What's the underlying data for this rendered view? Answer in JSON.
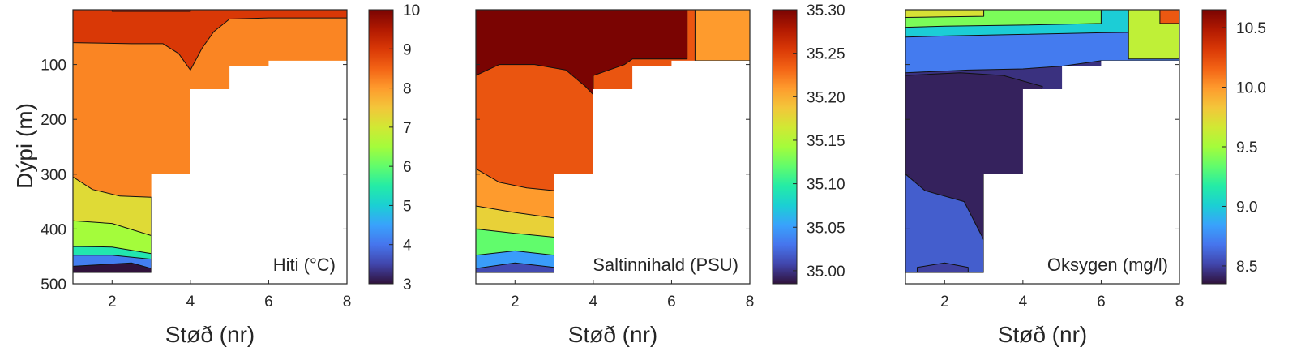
{
  "colors": {
    "turbo": [
      "#30123b",
      "#4145ab",
      "#4675ed",
      "#39a2fc",
      "#1bcfd4",
      "#24eca6",
      "#61fc6c",
      "#a4fc3b",
      "#d1e834",
      "#f3c63a",
      "#fe9b2d",
      "#f36315",
      "#d93806",
      "#b11901",
      "#7a0402"
    ],
    "frame": "#262626"
  },
  "chart_data": [
    {
      "type": "heatmap",
      "name": "temperature",
      "xlabel": "Støð (nr)",
      "ylabel": "Dýpi (m)",
      "label": "Hiti (°C)",
      "xlim": [
        1,
        8
      ],
      "ylim": [
        500,
        0
      ],
      "xticks": [
        2,
        4,
        6,
        8
      ],
      "yticks": [
        100,
        200,
        300,
        400,
        500
      ],
      "colorbar": {
        "min": 3,
        "max": 10,
        "ticks": [
          "3",
          "4",
          "5",
          "6",
          "7",
          "8",
          "9",
          "10"
        ]
      },
      "bottom_depth": [
        [
          1,
          480
        ],
        [
          3,
          480
        ],
        [
          3,
          300
        ],
        [
          4,
          300
        ],
        [
          4,
          145
        ],
        [
          5,
          145
        ],
        [
          5,
          103
        ],
        [
          6,
          103
        ],
        [
          6,
          93
        ],
        [
          8,
          93
        ]
      ],
      "zones": [
        {
          "value": 2.9,
          "outline": [
            [
              1,
              468
            ],
            [
              2.5,
              462
            ],
            [
              3,
              472
            ],
            [
              3,
              480
            ],
            [
              1,
              480
            ]
          ]
        },
        {
          "value": 4.1,
          "outline": [
            [
              1,
              448
            ],
            [
              2,
              448
            ],
            [
              3,
              455
            ],
            [
              3,
              480
            ],
            [
              1,
              480
            ]
          ]
        },
        {
          "value": 5.4,
          "outline": [
            [
              1,
              432
            ],
            [
              2,
              433
            ],
            [
              3,
              445
            ],
            [
              3,
              480
            ],
            [
              1,
              480
            ]
          ]
        },
        {
          "value": 6.5,
          "outline": [
            [
              1,
              385
            ],
            [
              2,
              390
            ],
            [
              3,
              412
            ],
            [
              3,
              480
            ],
            [
              1,
              480
            ]
          ]
        },
        {
          "value": 7.2,
          "outline": [
            [
              1,
              305
            ],
            [
              1.5,
              328
            ],
            [
              2.2,
              340
            ],
            [
              3,
              342
            ],
            [
              3,
              480
            ],
            [
              1,
              480
            ]
          ]
        },
        {
          "value": 8.2,
          "outline": [
            [
              1,
              0
            ],
            [
              8,
              0
            ],
            [
              8,
              93
            ],
            [
              1,
              480
            ]
          ]
        },
        {
          "value": 9.0,
          "outline": [
            [
              1,
              0
            ],
            [
              3.8,
              0
            ],
            [
              4.4,
              0
            ],
            [
              5,
              0
            ],
            [
              5.8,
              0
            ],
            [
              8,
              0
            ],
            [
              8,
              15
            ],
            [
              6,
              15
            ],
            [
              5,
              17
            ],
            [
              4.6,
              40
            ],
            [
              4.3,
              70
            ],
            [
              4,
              110
            ],
            [
              3.7,
              80
            ],
            [
              3.3,
              62
            ],
            [
              2.5,
              62
            ],
            [
              1,
              60
            ]
          ]
        },
        {
          "value": 9.8,
          "outline": [
            [
              2,
              0
            ],
            [
              4,
              0
            ],
            [
              4,
              3
            ],
            [
              2,
              3
            ]
          ]
        }
      ]
    },
    {
      "type": "heatmap",
      "name": "salinity",
      "xlabel": "Støð (nr)",
      "label": "Saltinnihald (PSU)",
      "xlim": [
        1,
        8
      ],
      "ylim": [
        500,
        0
      ],
      "xticks": [
        2,
        4,
        6,
        8
      ],
      "colorbar": {
        "min": 34.985,
        "max": 35.3,
        "ticks": [
          "35.00",
          "35.05",
          "35.10",
          "35.15",
          "35.20",
          "35.25",
          "35.30"
        ]
      },
      "bottom_depth": [
        [
          1,
          480
        ],
        [
          3,
          480
        ],
        [
          3,
          300
        ],
        [
          4,
          300
        ],
        [
          4,
          145
        ],
        [
          5,
          145
        ],
        [
          5,
          103
        ],
        [
          6,
          103
        ],
        [
          6,
          93
        ],
        [
          8,
          93
        ]
      ],
      "zones": [
        {
          "value": 35.01,
          "outline": [
            [
              1,
              472
            ],
            [
              2,
              462
            ],
            [
              3,
              470
            ],
            [
              3,
              480
            ],
            [
              1,
              480
            ]
          ]
        },
        {
          "value": 35.05,
          "outline": [
            [
              1,
              448
            ],
            [
              2,
              440
            ],
            [
              3,
              448
            ],
            [
              3,
              480
            ],
            [
              1,
              480
            ]
          ]
        },
        {
          "value": 35.12,
          "outline": [
            [
              1,
              400
            ],
            [
              2,
              408
            ],
            [
              3,
              415
            ],
            [
              3,
              480
            ],
            [
              1,
              480
            ]
          ]
        },
        {
          "value": 35.18,
          "outline": [
            [
              1,
              358
            ],
            [
              2,
              370
            ],
            [
              3,
              380
            ],
            [
              3,
              480
            ],
            [
              1,
              480
            ]
          ]
        },
        {
          "value": 35.21,
          "outline": [
            [
              1,
              290
            ],
            [
              1.6,
              315
            ],
            [
              2.3,
              325
            ],
            [
              3,
              330
            ],
            [
              3,
              480
            ],
            [
              1,
              480
            ]
          ]
        },
        {
          "value": 35.24,
          "outline": [
            [
              1,
              0
            ],
            [
              8,
              0
            ],
            [
              8,
              480
            ],
            [
              1,
              480
            ]
          ]
        },
        {
          "value": 35.3,
          "outline": [
            [
              1,
              0
            ],
            [
              6.4,
              0
            ],
            [
              6.4,
              90
            ],
            [
              5.8,
              90
            ],
            [
              5,
              90
            ],
            [
              4.8,
              100
            ],
            [
              4,
              120
            ],
            [
              4,
              155
            ],
            [
              3.8,
              140
            ],
            [
              3.3,
              110
            ],
            [
              2.5,
              100
            ],
            [
              1.6,
              100
            ],
            [
              1,
              120
            ]
          ]
        },
        {
          "value": 35.21,
          "outline": [
            [
              6.6,
              0
            ],
            [
              8,
              0
            ],
            [
              8,
              93
            ],
            [
              6.6,
              93
            ]
          ]
        }
      ]
    },
    {
      "type": "heatmap",
      "name": "oxygen",
      "xlabel": "Støð (nr)",
      "label": "Oksygen (mg/l)",
      "xlim": [
        1,
        8
      ],
      "ylim": [
        500,
        0
      ],
      "xticks": [
        2,
        4,
        6,
        8
      ],
      "colorbar": {
        "min": 8.35,
        "max": 10.65,
        "ticks": [
          "8.5",
          "9.0",
          "9.5",
          "10.0",
          "10.5"
        ]
      },
      "bottom_depth": [
        [
          1,
          480
        ],
        [
          3,
          480
        ],
        [
          3,
          300
        ],
        [
          4,
          300
        ],
        [
          4,
          145
        ],
        [
          5,
          145
        ],
        [
          5,
          103
        ],
        [
          6,
          103
        ],
        [
          6,
          93
        ],
        [
          8,
          93
        ]
      ],
      "zones": [
        {
          "value": 8.45,
          "outline": [
            [
              1,
              0
            ],
            [
              8,
              0
            ],
            [
              8,
              480
            ],
            [
              1,
              480
            ]
          ]
        },
        {
          "value": 8.7,
          "outline": [
            [
              1,
              0
            ],
            [
              8,
              0
            ],
            [
              8,
              93
            ],
            [
              6,
              93
            ],
            [
              5,
              103
            ],
            [
              4,
              108
            ],
            [
              2.6,
              110
            ],
            [
              1,
              115
            ]
          ]
        },
        {
          "value": 9.0,
          "outline": [
            [
              1,
              0
            ],
            [
              8,
              0
            ],
            [
              8,
              40
            ],
            [
              6,
              42
            ],
            [
              4,
              45
            ],
            [
              2,
              48
            ],
            [
              1,
              50
            ]
          ]
        },
        {
          "value": 9.4,
          "outline": [
            [
              1,
              0
            ],
            [
              6,
              0
            ],
            [
              6,
              25
            ],
            [
              4,
              28
            ],
            [
              2,
              30
            ],
            [
              1,
              32
            ]
          ]
        },
        {
          "value": 9.7,
          "outline": [
            [
              1,
              0
            ],
            [
              3,
              0
            ],
            [
              3,
              12
            ],
            [
              2,
              13
            ],
            [
              1,
              14
            ]
          ]
        },
        {
          "value": 8.4,
          "outline": [
            [
              1,
              120
            ],
            [
              2.4,
              115
            ],
            [
              3.5,
              120
            ],
            [
              4.5,
              140
            ],
            [
              4,
              300
            ],
            [
              3,
              300
            ],
            [
              3,
              480
            ],
            [
              1,
              480
            ],
            [
              1,
              420
            ],
            [
              1.2,
              340
            ],
            [
              1,
              300
            ]
          ]
        },
        {
          "value": 8.6,
          "outline": [
            [
              1,
              300
            ],
            [
              1.5,
              330
            ],
            [
              2.5,
              350
            ],
            [
              3,
              420
            ],
            [
              3,
              480
            ],
            [
              1,
              480
            ]
          ]
        },
        {
          "value": 9.6,
          "outline": [
            [
              6.7,
              0
            ],
            [
              8,
              0
            ],
            [
              8,
              90
            ],
            [
              6.7,
              90
            ]
          ]
        },
        {
          "value": 10.2,
          "outline": [
            [
              7.5,
              0
            ],
            [
              8,
              0
            ],
            [
              8,
              25
            ],
            [
              7.5,
              25
            ]
          ]
        },
        {
          "value": 8.5,
          "outline": [
            [
              1.3,
              470
            ],
            [
              2,
              462
            ],
            [
              2.6,
              470
            ],
            [
              2.6,
              480
            ],
            [
              1.3,
              480
            ]
          ]
        }
      ]
    }
  ]
}
